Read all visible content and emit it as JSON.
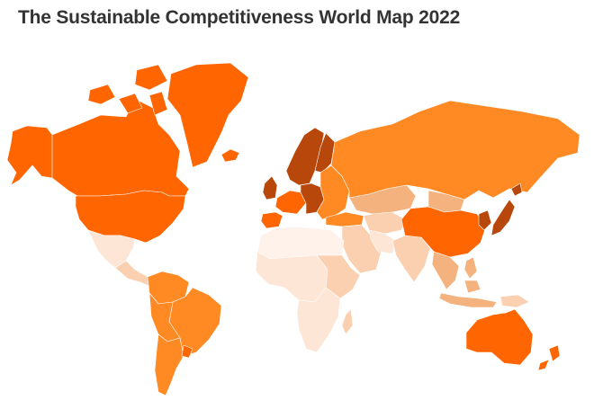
{
  "title": "The Sustainable Competitiveness World Map 2022",
  "colors": {
    "background": "#ffffff",
    "title_text": "#333333",
    "level_top": "#b7470a",
    "level_high": "#ff6500",
    "level_upper_mid": "#ff8a24",
    "level_mid": "#f4b37e",
    "level_low": "#fad0b0",
    "level_lowest": "#fde6d6",
    "level_palest": "#fff2ea"
  },
  "regions": [
    {
      "name": "Canada",
      "level": "level_high"
    },
    {
      "name": "Alaska",
      "level": "level_high"
    },
    {
      "name": "Greenland",
      "level": "level_high"
    },
    {
      "name": "United States",
      "level": "level_high"
    },
    {
      "name": "Mexico",
      "level": "level_lowest"
    },
    {
      "name": "Central America",
      "level": "level_low"
    },
    {
      "name": "Colombia and Venezuela",
      "level": "level_upper_mid"
    },
    {
      "name": "Brazil",
      "level": "level_upper_mid"
    },
    {
      "name": "Peru and Bolivia",
      "level": "level_upper_mid"
    },
    {
      "name": "Chile and Argentina",
      "level": "level_upper_mid"
    },
    {
      "name": "Uruguay",
      "level": "level_high"
    },
    {
      "name": "Iceland",
      "level": "level_high"
    },
    {
      "name": "Scandinavia",
      "level": "level_top"
    },
    {
      "name": "Finland",
      "level": "level_top"
    },
    {
      "name": "United Kingdom",
      "level": "level_top"
    },
    {
      "name": "Western Europe",
      "level": "level_high"
    },
    {
      "name": "Iberia",
      "level": "level_high"
    },
    {
      "name": "Central Europe",
      "level": "level_top"
    },
    {
      "name": "Eastern Europe",
      "level": "level_upper_mid"
    },
    {
      "name": "Russia",
      "level": "level_upper_mid"
    },
    {
      "name": "Turkey",
      "level": "level_upper_mid"
    },
    {
      "name": "Kazakhstan",
      "level": "level_mid"
    },
    {
      "name": "Mongolia",
      "level": "level_mid"
    },
    {
      "name": "Central Asia",
      "level": "level_low"
    },
    {
      "name": "Middle East",
      "level": "level_low"
    },
    {
      "name": "Iran",
      "level": "level_lowest"
    },
    {
      "name": "South Asia",
      "level": "level_low"
    },
    {
      "name": "China",
      "level": "level_high"
    },
    {
      "name": "Korea",
      "level": "level_top"
    },
    {
      "name": "Japan",
      "level": "level_top"
    },
    {
      "name": "Southeast Asia",
      "level": "level_mid"
    },
    {
      "name": "Indonesia",
      "level": "level_mid"
    },
    {
      "name": "Papua New Guinea",
      "level": "level_low"
    },
    {
      "name": "Australia",
      "level": "level_high"
    },
    {
      "name": "New Zealand",
      "level": "level_high"
    },
    {
      "name": "North Africa",
      "level": "level_palest"
    },
    {
      "name": "West and Central Africa",
      "level": "level_lowest"
    },
    {
      "name": "East Africa",
      "level": "level_low"
    },
    {
      "name": "Southern Africa",
      "level": "level_lowest"
    },
    {
      "name": "Madagascar",
      "level": "level_low"
    }
  ]
}
